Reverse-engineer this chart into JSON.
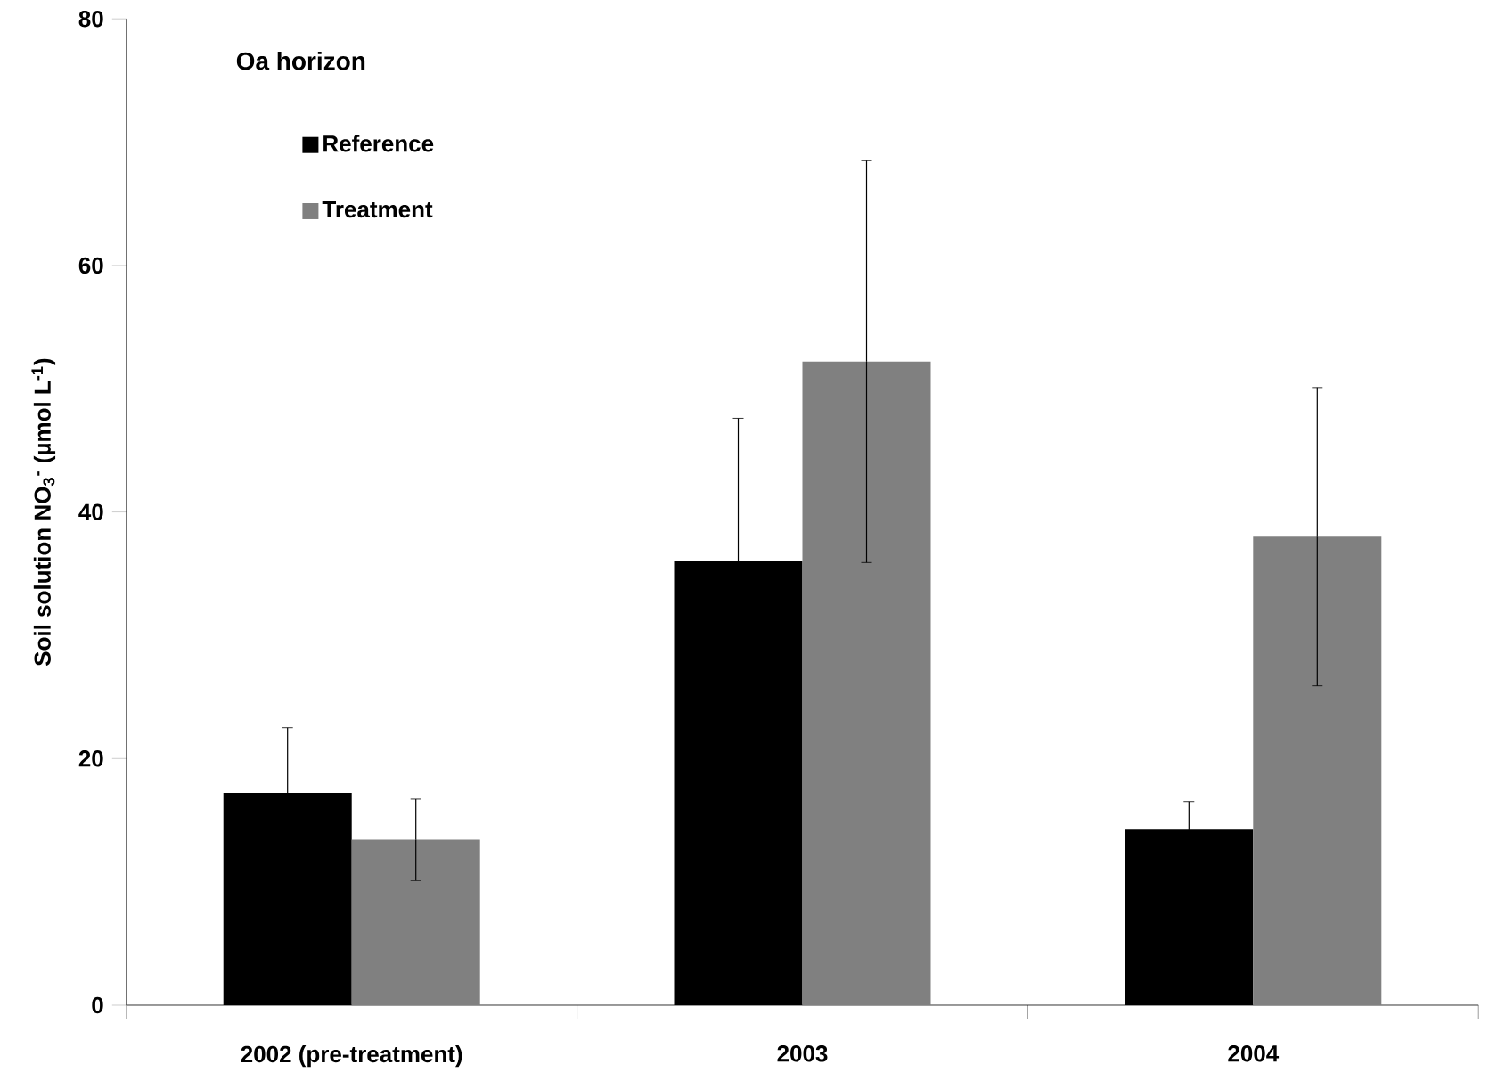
{
  "chart_data": {
    "type": "bar",
    "categories": [
      "2002 (pre-treatment)",
      "2003",
      "2004"
    ],
    "ylabel": "Soil solution  NO$_{3}$$^{-}$ (µmol L$^{-1}$)",
    "annotations": [
      "Oa horizon"
    ],
    "ylim": [
      0,
      80
    ],
    "yticks": [
      0,
      20,
      40,
      60,
      80
    ],
    "legend": "top left",
    "grid": false,
    "series": [
      {
        "name": "Reference",
        "color": "#000000",
        "values": [
          17.2,
          36.0,
          14.3
        ],
        "errors": [
          5.3,
          11.6,
          2.2
        ]
      },
      {
        "name": "Treatment",
        "color": "#808080",
        "values": [
          13.4,
          52.2,
          38.0
        ],
        "errors": [
          3.3,
          16.3,
          12.1
        ]
      }
    ]
  }
}
